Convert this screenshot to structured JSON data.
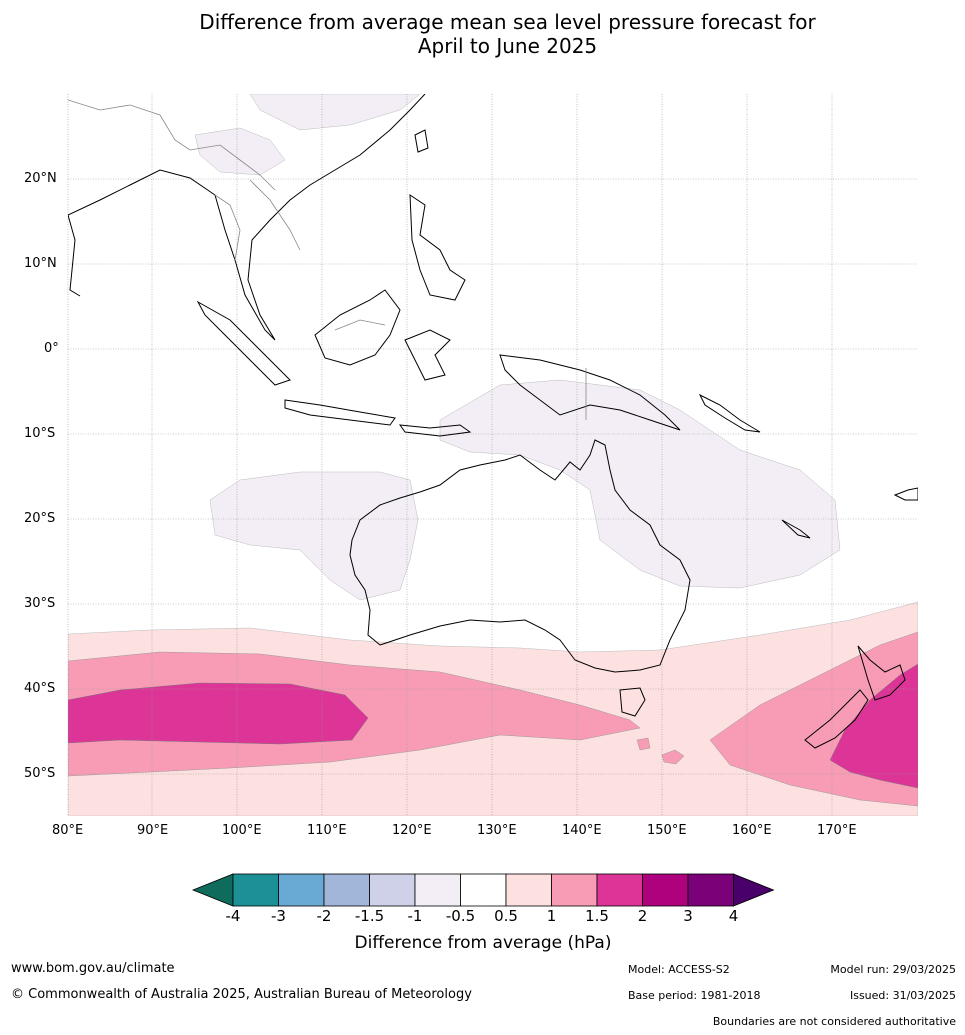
{
  "title_line1": "Difference from average mean sea level pressure forecast for",
  "title_line2": "April to June 2025",
  "longitude_labels": [
    "80°E",
    "90°E",
    "100°E",
    "110°E",
    "120°E",
    "130°E",
    "140°E",
    "150°E",
    "160°E",
    "170°E"
  ],
  "latitude_labels": [
    "20°N",
    "10°N",
    "0°",
    "10°S",
    "20°S",
    "30°S",
    "40°S",
    "50°S"
  ],
  "colorbar": {
    "ticks": [
      "-4",
      "-3",
      "-2",
      "-1.5",
      "-1",
      "-0.5",
      "0.5",
      "1",
      "1.5",
      "2",
      "3",
      "4"
    ],
    "colors": [
      "#0f6b5c",
      "#1d9096",
      "#68aad3",
      "#a2b6d9",
      "#cfd1e8",
      "#f3eef6",
      "#ffffff",
      "#fde0e0",
      "#f89cb6",
      "#dd3497",
      "#ae017e",
      "#7a0177",
      "#49006a"
    ],
    "label": "Difference from average (hPa)"
  },
  "footer": {
    "website": "www.bom.gov.au/climate",
    "copyright": "© Commonwealth of Australia 2025, Australian Bureau of Meteorology",
    "model": "Model: ACCESS-S2",
    "base_period": "Base period: 1981-2018",
    "model_run": "Model run: 29/03/2025",
    "issued": "Issued: 31/03/2025",
    "disclaimer": "Boundaries are not considered authoritative"
  }
}
